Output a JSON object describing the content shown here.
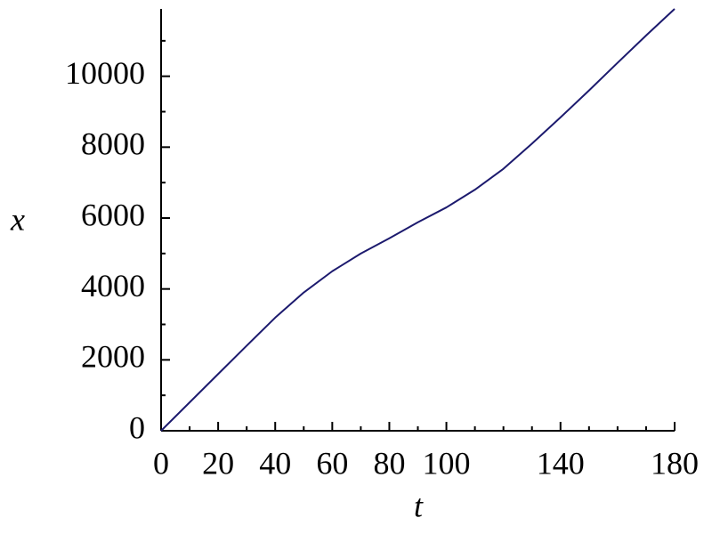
{
  "chart_data": {
    "type": "line",
    "xlabel": "t",
    "ylabel": "x",
    "x": [
      0,
      10,
      20,
      30,
      40,
      50,
      60,
      70,
      80,
      90,
      100,
      110,
      120,
      130,
      140,
      150,
      160,
      170,
      180
    ],
    "series": [
      {
        "color": "#1c1a6e",
        "values": [
          0,
          800,
          1600,
          2400,
          3190,
          3900,
          4500,
          5000,
          5430,
          5880,
          6300,
          6800,
          7390,
          8100,
          8840,
          9600,
          10380,
          11150,
          11900
        ]
      }
    ],
    "xlim": [
      0,
      180
    ],
    "xticks": [
      0,
      20,
      40,
      60,
      80,
      100,
      140,
      180
    ],
    "ylim": [
      0,
      11900
    ],
    "yticks": [
      0,
      2000,
      4000,
      6000,
      8000,
      10000
    ]
  }
}
